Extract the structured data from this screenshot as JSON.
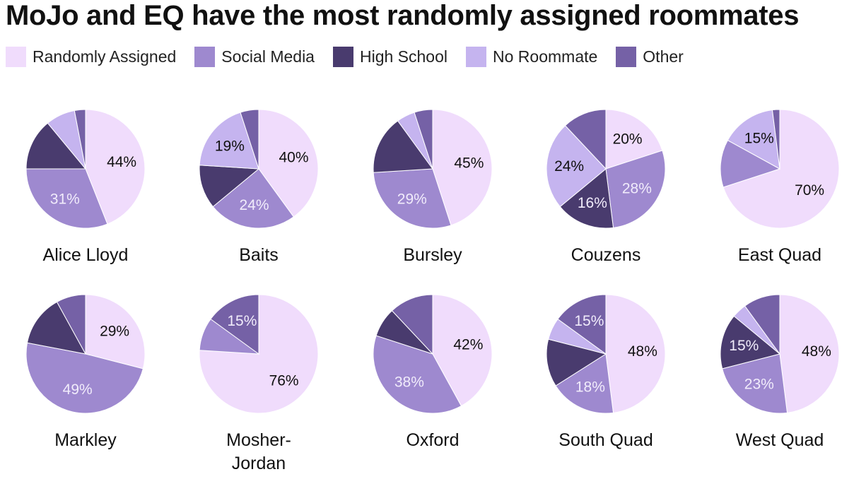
{
  "title": "MoJo and EQ have the most randomly assigned roommates",
  "legend": [
    {
      "label": "Randomly Assigned",
      "color": "#f0dcfc"
    },
    {
      "label": "Social Media",
      "color": "#9e89cf"
    },
    {
      "label": "High School",
      "color": "#493b6e"
    },
    {
      "label": "No Roommate",
      "color": "#c5b4ef"
    },
    {
      "label": "Other",
      "color": "#7561a6"
    }
  ],
  "chart_data": [
    {
      "type": "pie",
      "title": "Alice Lloyd",
      "title_lines": [
        "Alice Lloyd"
      ],
      "categories": [
        "Randomly Assigned",
        "Social Media",
        "High School",
        "No Roommate",
        "Other"
      ],
      "values": [
        44,
        31,
        14,
        8,
        3
      ],
      "labels": [
        "44%",
        "31%",
        "",
        "",
        ""
      ]
    },
    {
      "type": "pie",
      "title": "Baits",
      "title_lines": [
        "Baits"
      ],
      "categories": [
        "Randomly Assigned",
        "Social Media",
        "High School",
        "No Roommate",
        "Other"
      ],
      "values": [
        40,
        24,
        12,
        19,
        5
      ],
      "labels": [
        "40%",
        "24%",
        "",
        "19%",
        ""
      ]
    },
    {
      "type": "pie",
      "title": "Bursley",
      "title_lines": [
        "Bursley"
      ],
      "categories": [
        "Randomly Assigned",
        "Social Media",
        "High School",
        "No Roommate",
        "Other"
      ],
      "values": [
        45,
        29,
        16,
        5,
        5
      ],
      "labels": [
        "45%",
        "29%",
        "",
        "",
        ""
      ]
    },
    {
      "type": "pie",
      "title": "Couzens",
      "title_lines": [
        "Couzens"
      ],
      "categories": [
        "Randomly Assigned",
        "Social Media",
        "High School",
        "No Roommate",
        "Other"
      ],
      "values": [
        20,
        28,
        16,
        24,
        12
      ],
      "labels": [
        "20%",
        "28%",
        "16%",
        "24%",
        ""
      ]
    },
    {
      "type": "pie",
      "title": "East Quad",
      "title_lines": [
        "East Quad"
      ],
      "categories": [
        "Randomly Assigned",
        "Social Media",
        "High School",
        "No Roommate",
        "Other"
      ],
      "values": [
        70,
        13,
        0,
        15,
        2
      ],
      "labels": [
        "70%",
        "",
        "",
        "15%",
        ""
      ]
    },
    {
      "type": "pie",
      "title": "Markley",
      "title_lines": [
        "Markley"
      ],
      "categories": [
        "Randomly Assigned",
        "Social Media",
        "High School",
        "No Roommate",
        "Other"
      ],
      "values": [
        29,
        49,
        14,
        0,
        8
      ],
      "labels": [
        "29%",
        "49%",
        "",
        "",
        ""
      ]
    },
    {
      "type": "pie",
      "title": "Mosher-Jordan",
      "title_lines": [
        "Mosher-",
        "Jordan"
      ],
      "categories": [
        "Randomly Assigned",
        "Social Media",
        "High School",
        "No Roommate",
        "Other"
      ],
      "values": [
        76,
        9,
        0,
        0,
        15
      ],
      "labels": [
        "76%",
        "",
        "",
        "",
        "15%"
      ]
    },
    {
      "type": "pie",
      "title": "Oxford",
      "title_lines": [
        "Oxford"
      ],
      "categories": [
        "Randomly Assigned",
        "Social Media",
        "High School",
        "No Roommate",
        "Other"
      ],
      "values": [
        42,
        38,
        8,
        0,
        12
      ],
      "labels": [
        "42%",
        "38%",
        "",
        "",
        ""
      ]
    },
    {
      "type": "pie",
      "title": "South Quad",
      "title_lines": [
        "South Quad"
      ],
      "categories": [
        "Randomly Assigned",
        "Social Media",
        "High School",
        "No Roommate",
        "Other"
      ],
      "values": [
        48,
        18,
        13,
        6,
        15
      ],
      "labels": [
        "48%",
        "18%",
        "",
        "",
        "15%"
      ]
    },
    {
      "type": "pie",
      "title": "West Quad",
      "title_lines": [
        "West Quad"
      ],
      "categories": [
        "Randomly Assigned",
        "Social Media",
        "High School",
        "No Roommate",
        "Other"
      ],
      "values": [
        48,
        23,
        15,
        4,
        10
      ],
      "labels": [
        "48%",
        "23%",
        "15%",
        "",
        ""
      ]
    }
  ]
}
